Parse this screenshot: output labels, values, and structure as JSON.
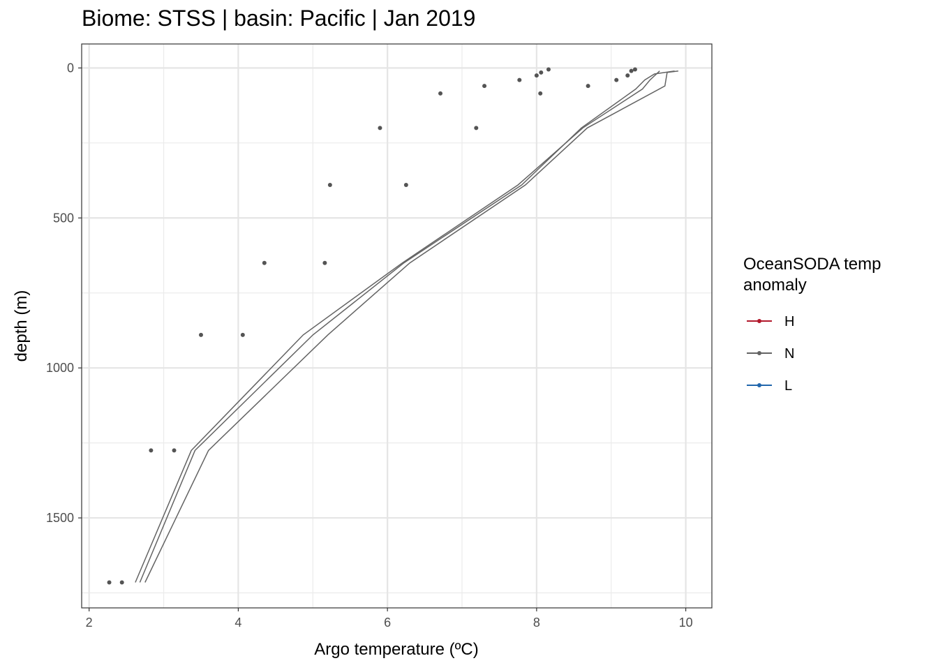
{
  "title": "Biome: STSS | basin: Pacific  | Jan 2019",
  "chart_data": {
    "type": "scatter",
    "title": "Biome: STSS | basin: Pacific  | Jan 2019",
    "xlabel": "Argo temperature (ºC)",
    "ylabel": "depth (m)",
    "xlim": [
      1.9,
      10.35
    ],
    "ylim_reversed": [
      -80,
      1800
    ],
    "x_ticks": [
      "2",
      "4",
      "6",
      "8",
      "10"
    ],
    "y_ticks": [
      "0",
      "500",
      "1000",
      "1500"
    ],
    "grid": true,
    "legend": {
      "title": "OceanSODA temp anomaly",
      "title_lines": [
        "OceanSODA temp",
        "anomaly"
      ],
      "placement": "right",
      "entries": [
        {
          "label": "H",
          "color": "#b2182b"
        },
        {
          "label": "N",
          "color": "#636363"
        },
        {
          "label": "L",
          "color": "#2166ac"
        }
      ]
    },
    "points": {
      "color": "#545454",
      "data": [
        {
          "x": 9.32,
          "y": 5
        },
        {
          "x": 9.27,
          "y": 10
        },
        {
          "x": 9.22,
          "y": 25
        },
        {
          "x": 8.16,
          "y": 5
        },
        {
          "x": 8.06,
          "y": 15
        },
        {
          "x": 8.0,
          "y": 25
        },
        {
          "x": 9.07,
          "y": 40
        },
        {
          "x": 7.77,
          "y": 40
        },
        {
          "x": 8.69,
          "y": 60
        },
        {
          "x": 7.3,
          "y": 60
        },
        {
          "x": 8.05,
          "y": 85
        },
        {
          "x": 6.71,
          "y": 85
        },
        {
          "x": 7.19,
          "y": 200
        },
        {
          "x": 5.9,
          "y": 200
        },
        {
          "x": 6.25,
          "y": 390
        },
        {
          "x": 5.23,
          "y": 390
        },
        {
          "x": 5.16,
          "y": 650
        },
        {
          "x": 4.35,
          "y": 650
        },
        {
          "x": 4.06,
          "y": 890
        },
        {
          "x": 3.5,
          "y": 890
        },
        {
          "x": 3.14,
          "y": 1275
        },
        {
          "x": 2.83,
          "y": 1275
        },
        {
          "x": 2.44,
          "y": 1715
        },
        {
          "x": 2.27,
          "y": 1715
        }
      ]
    },
    "series": [
      {
        "color": "#636363",
        "points": [
          {
            "x": 9.65,
            "y": 10
          },
          {
            "x": 9.52,
            "y": 40
          },
          {
            "x": 9.42,
            "y": 70
          },
          {
            "x": 8.62,
            "y": 200
          },
          {
            "x": 7.75,
            "y": 390
          },
          {
            "x": 6.2,
            "y": 650
          },
          {
            "x": 4.87,
            "y": 890
          },
          {
            "x": 3.37,
            "y": 1275
          },
          {
            "x": 2.62,
            "y": 1715
          }
        ]
      },
      {
        "color": "#636363",
        "points": [
          {
            "x": 9.85,
            "y": 10
          },
          {
            "x": 9.58,
            "y": 20
          },
          {
            "x": 9.45,
            "y": 40
          },
          {
            "x": 9.33,
            "y": 70
          },
          {
            "x": 8.6,
            "y": 200
          },
          {
            "x": 7.8,
            "y": 390
          },
          {
            "x": 6.22,
            "y": 650
          },
          {
            "x": 5.0,
            "y": 890
          },
          {
            "x": 3.42,
            "y": 1275
          },
          {
            "x": 2.68,
            "y": 1715
          }
        ]
      },
      {
        "color": "#636363",
        "points": [
          {
            "x": 9.9,
            "y": 10
          },
          {
            "x": 9.75,
            "y": 15
          },
          {
            "x": 9.72,
            "y": 60
          },
          {
            "x": 8.68,
            "y": 200
          },
          {
            "x": 7.85,
            "y": 390
          },
          {
            "x": 6.3,
            "y": 650
          },
          {
            "x": 5.2,
            "y": 890
          },
          {
            "x": 3.6,
            "y": 1275
          },
          {
            "x": 2.75,
            "y": 1715
          }
        ]
      }
    ]
  }
}
